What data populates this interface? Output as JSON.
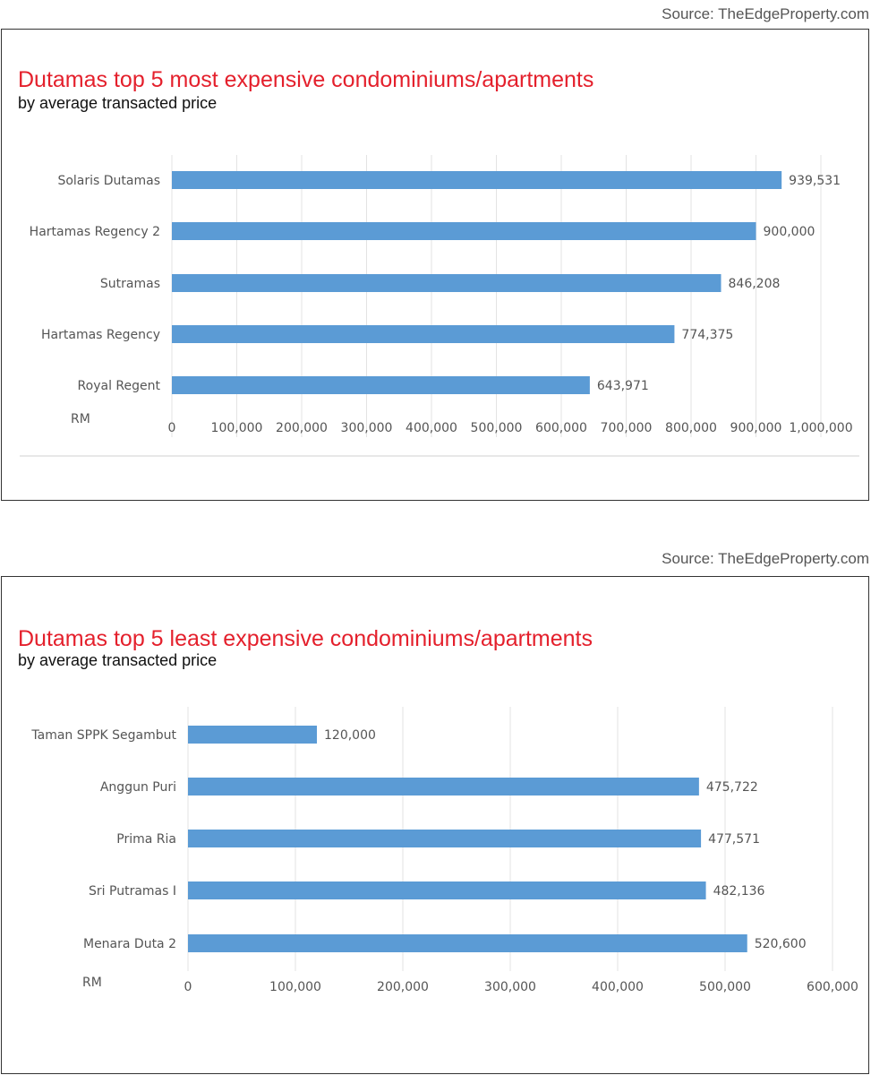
{
  "source_label": "Source: TheEdgeProperty.com",
  "chart_data": [
    {
      "type": "bar",
      "orientation": "horizontal",
      "title": "Dutamas  top 5 most expensive condominiums/apartments",
      "subtitle": "by average transacted price",
      "xlabel": "RM",
      "categories": [
        "Solaris Dutamas",
        "Hartamas Regency 2",
        "Sutramas",
        "Hartamas Regency",
        "Royal Regent"
      ],
      "values": [
        939531,
        900000,
        846208,
        774375,
        643971
      ],
      "value_labels": [
        "939,531",
        "900,000",
        "846,208",
        "774,375",
        "643,971"
      ],
      "xlim": [
        0,
        1000000
      ],
      "ticks": [
        0,
        100000,
        200000,
        300000,
        400000,
        500000,
        600000,
        700000,
        800000,
        900000,
        1000000
      ],
      "tick_labels": [
        "0",
        "100,000",
        "200,000",
        "300,000",
        "400,000",
        "500,000",
        "600,000",
        "700,000",
        "800,000",
        "900,000",
        "1,000,000"
      ],
      "grid": true,
      "bar_color": "#5b9bd5"
    },
    {
      "type": "bar",
      "orientation": "horizontal",
      "title": "Dutamas  top 5 least expensive condominiums/apartments",
      "subtitle": "by average transacted price",
      "xlabel": "RM",
      "categories": [
        "Taman SPPK Segambut",
        "Anggun Puri",
        "Prima Ria",
        "Sri Putramas I",
        "Menara Duta 2"
      ],
      "values": [
        120000,
        475722,
        477571,
        482136,
        520600
      ],
      "value_labels": [
        "120,000",
        "475,722",
        "477,571",
        "482,136",
        "520,600"
      ],
      "xlim": [
        0,
        600000
      ],
      "ticks": [
        0,
        100000,
        200000,
        300000,
        400000,
        500000,
        600000
      ],
      "tick_labels": [
        "0",
        "100,000",
        "200,000",
        "300,000",
        "400,000",
        "500,000",
        "600,000"
      ],
      "grid": true,
      "bar_color": "#5b9bd5"
    }
  ]
}
